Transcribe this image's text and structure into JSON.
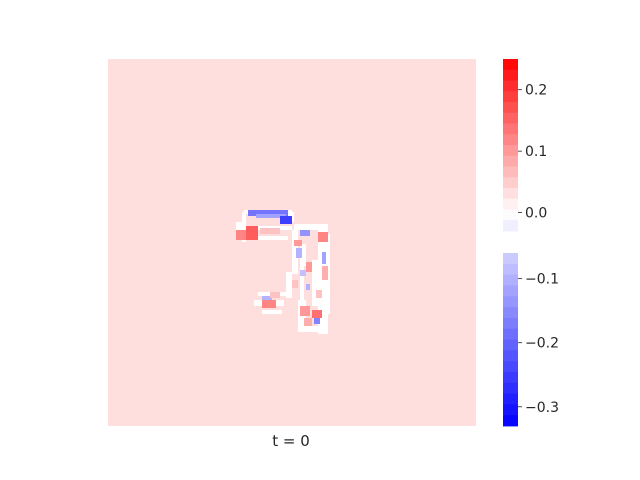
{
  "chart_data": {
    "type": "heatmap",
    "xlabel": "t = 0",
    "colormap": "bwr",
    "color_range": [
      -0.33,
      0.25
    ],
    "background_value": 0.02,
    "colorbar": {
      "upper_ticks": [
        {
          "value": 0.2,
          "label": "0.2"
        },
        {
          "value": 0.1,
          "label": "0.1"
        },
        {
          "value": 0.0,
          "label": "0.0"
        }
      ],
      "lower_ticks": [
        {
          "value": -0.1,
          "label": "−0.1"
        },
        {
          "value": -0.2,
          "label": "−0.2"
        },
        {
          "value": -0.3,
          "label": "−0.3"
        }
      ],
      "upper_range": [
        -0.03,
        0.25
      ],
      "lower_range": [
        -0.33,
        -0.06
      ],
      "levels": 16
    },
    "grid": false,
    "colors": {
      "background_cell": "#ffdede",
      "positive_max": "#ff0000",
      "negative_max": "#0000ff",
      "outline": "#ffffff"
    }
  }
}
